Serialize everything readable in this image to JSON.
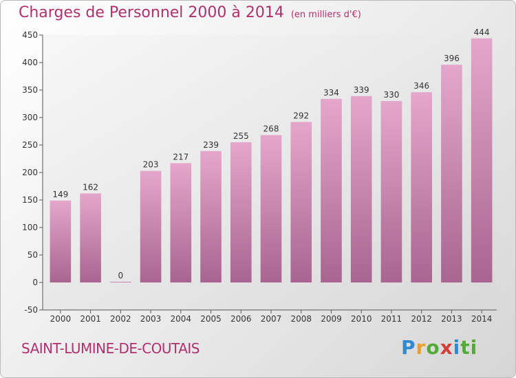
{
  "header": {
    "title": "Charges de Personnel 2000 à 2014",
    "subtitle": "(en milliers d'€)"
  },
  "footer": {
    "commune": "SAINT-LUMINE-DE-COUTAIS",
    "logo_letters": [
      "P",
      "r",
      "o",
      "x",
      "i",
      "ti"
    ]
  },
  "colors": {
    "bar": "#c97aa8",
    "title": "#b0306e"
  },
  "chart_data": {
    "type": "bar",
    "title": "Charges de Personnel 2000 à 2014",
    "xlabel": "",
    "ylabel": "",
    "categories": [
      "2000",
      "2001",
      "2002",
      "2003",
      "2004",
      "2005",
      "2006",
      "2007",
      "2008",
      "2009",
      "2010",
      "2011",
      "2012",
      "2013",
      "2014"
    ],
    "values": [
      149,
      162,
      0,
      203,
      217,
      239,
      255,
      268,
      292,
      334,
      339,
      330,
      346,
      396,
      444
    ],
    "ylim": [
      -50,
      450
    ],
    "yticks": [
      -50,
      0,
      50,
      100,
      150,
      200,
      250,
      300,
      350,
      400,
      450
    ],
    "grid": false
  }
}
